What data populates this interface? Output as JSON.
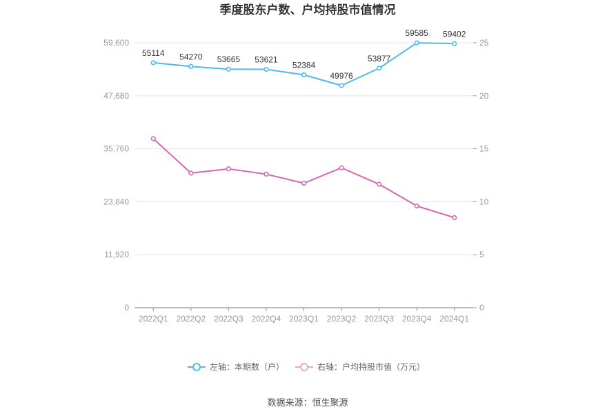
{
  "chart_data": {
    "type": "line",
    "title": "季度股东户数、户均持股市值情况",
    "categories": [
      "2022Q1",
      "2022Q2",
      "2022Q3",
      "2022Q4",
      "2023Q1",
      "2023Q2",
      "2023Q3",
      "2023Q4",
      "2024Q1"
    ],
    "left_axis": {
      "ticks": [
        "0",
        "11,920",
        "23,840",
        "35,760",
        "47,680",
        "59,600"
      ],
      "ylim": [
        0,
        59600
      ]
    },
    "right_axis": {
      "ticks": [
        "0",
        "5",
        "10",
        "15",
        "20",
        "25"
      ],
      "ylim": [
        0,
        25
      ]
    },
    "series": [
      {
        "name": "左轴：本期数（户）",
        "axis": "left",
        "color": "#4dbbeb",
        "values": [
          55114,
          54270,
          53665,
          53621,
          52384,
          49976,
          53877,
          59585,
          59402
        ],
        "labels": [
          "55114",
          "54270",
          "53665",
          "53621",
          "52384",
          "49976",
          "53877",
          "59585",
          "59402"
        ]
      },
      {
        "name": "右轴：户均持股市值（万元）",
        "axis": "right",
        "color": "#d966b0",
        "values": [
          15.95,
          12.7,
          13.1,
          12.6,
          11.75,
          13.2,
          11.65,
          9.6,
          8.5
        ]
      }
    ],
    "grid": true,
    "legend_position": "bottom",
    "source": "数据来源：恒生聚源"
  }
}
